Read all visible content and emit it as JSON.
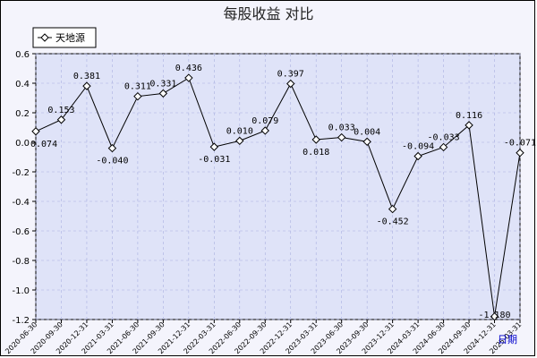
{
  "chart_data": {
    "type": "line",
    "title": "每股收益  对比",
    "ylim": [
      -1.2,
      0.6
    ],
    "yticks": [
      "0.6",
      "0.4",
      "0.2",
      "0.0",
      "-0.2",
      "-0.4",
      "-0.6",
      "-0.8",
      "-1.0",
      "-1.2"
    ],
    "grid": true,
    "legend_position": "top-left",
    "x_axis_hint": "日期",
    "x": [
      "2020-06-30",
      "2020-09-30",
      "2020-12-31",
      "2021-03-31",
      "2021-06-30",
      "2021-09-30",
      "2021-12-31",
      "2022-03-31",
      "2022-06-30",
      "2022-09-30",
      "2022-12-31",
      "2023-03-31",
      "2023-06-30",
      "2023-09-30",
      "2023-12-31",
      "2024-03-31",
      "2024-06-30",
      "2024-09-30",
      "2024-12-31",
      "2025-03-31"
    ],
    "series": [
      {
        "name": "天地源",
        "values": [
          0.074,
          0.153,
          0.381,
          -0.04,
          0.311,
          0.331,
          0.436,
          -0.031,
          0.01,
          0.079,
          0.397,
          0.018,
          0.033,
          0.004,
          -0.452,
          -0.094,
          -0.033,
          0.116,
          -1.18,
          -0.071
        ],
        "labels": [
          "0.074",
          "0.153",
          "0.381",
          "-0.040",
          "0.311",
          "0.331",
          "0.436",
          "-0.031",
          "0.010",
          "0.079",
          "0.397",
          "0.018",
          "0.033",
          "0.004",
          "-0.452",
          "-0.094",
          "-0.033",
          "0.116",
          "-1.180",
          "-0.071"
        ],
        "color": "#000000",
        "marker": "diamond"
      }
    ],
    "colors": {
      "plot_bg": "#dfe3f8",
      "page_bg": "#f4f4fc",
      "grid": "#aab0e0",
      "line": "#000000",
      "hint": "#0000cc"
    }
  }
}
